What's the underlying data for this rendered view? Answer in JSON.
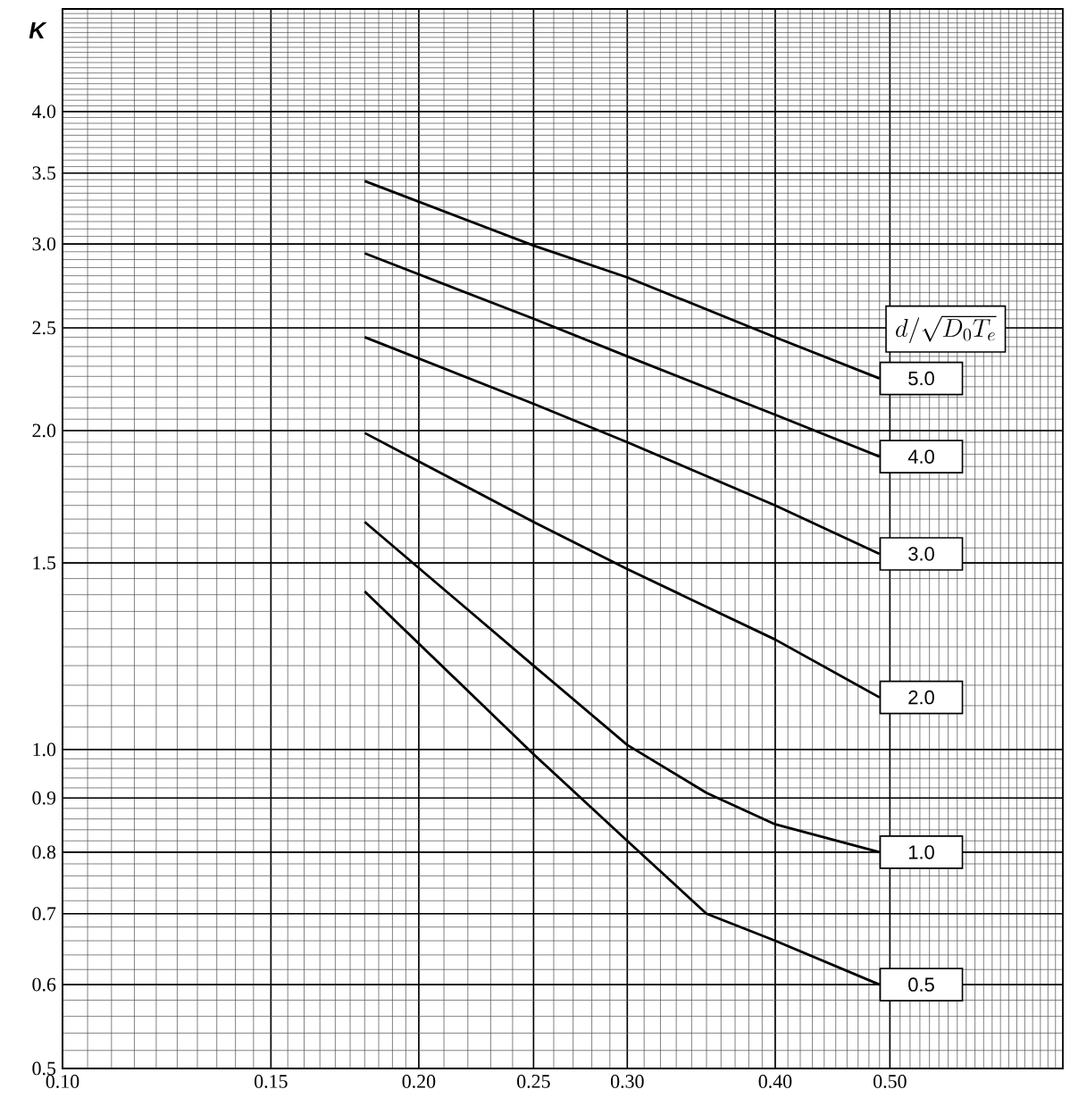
{
  "chart_data": {
    "type": "line",
    "ylabel": "K",
    "legend_title": "d / \\sqrt{D_0 T_e}",
    "log": "xy",
    "grid": true,
    "marker": "none",
    "line_style": "solid",
    "xlim": [
      0.1,
      0.7
    ],
    "ylim": [
      0.5,
      5.0
    ],
    "xticks": [
      {
        "value": 0.1,
        "label": "0.10"
      },
      {
        "value": 0.15,
        "label": "0.15"
      },
      {
        "value": 0.2,
        "label": "0.20"
      },
      {
        "value": 0.25,
        "label": "0.25"
      },
      {
        "value": 0.3,
        "label": "0.30"
      },
      {
        "value": 0.4,
        "label": "0.40"
      },
      {
        "value": 0.5,
        "label": "0.50"
      }
    ],
    "yticks": [
      0.5,
      0.6,
      0.7,
      0.8,
      0.9,
      {
        "value": 1.0,
        "label": "1.0"
      },
      1.5,
      {
        "value": 2.0,
        "label": "2.0"
      },
      2.5,
      {
        "value": 3.0,
        "label": "3.0"
      },
      3.5,
      {
        "value": 4.0,
        "label": "4.0"
      }
    ],
    "series": [
      {
        "name": "5.0",
        "color": "#000000",
        "x": [
          0.18,
          0.25,
          0.3,
          0.4,
          0.49
        ],
        "values": [
          3.44,
          2.99,
          2.79,
          2.45,
          2.24
        ]
      },
      {
        "name": "4.0",
        "color": "#000000",
        "x": [
          0.18,
          0.25,
          0.3,
          0.4,
          0.49
        ],
        "values": [
          2.94,
          2.55,
          2.35,
          2.07,
          1.89
        ]
      },
      {
        "name": "3.0",
        "color": "#000000",
        "x": [
          0.18,
          0.25,
          0.3,
          0.4,
          0.49
        ],
        "values": [
          2.45,
          2.12,
          1.95,
          1.7,
          1.53
        ]
      },
      {
        "name": "2.0",
        "color": "#000000",
        "x": [
          0.18,
          0.25,
          0.3,
          0.4,
          0.49
        ],
        "values": [
          1.99,
          1.64,
          1.48,
          1.27,
          1.12
        ]
      },
      {
        "name": "1.0",
        "color": "#000000",
        "x": [
          0.18,
          0.25,
          0.3,
          0.35,
          0.4,
          0.49
        ],
        "values": [
          1.64,
          1.2,
          1.01,
          0.91,
          0.85,
          0.8
        ]
      },
      {
        "name": "0.5",
        "color": "#000000",
        "x": [
          0.18,
          0.25,
          0.3,
          0.35,
          0.4,
          0.49
        ],
        "values": [
          1.41,
          0.99,
          0.82,
          0.7,
          0.66,
          0.6
        ]
      }
    ]
  }
}
